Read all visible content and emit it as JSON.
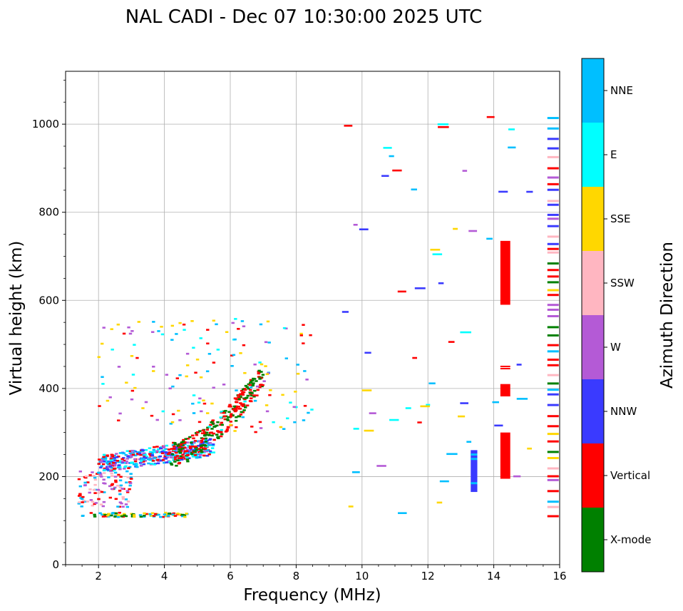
{
  "chart_data": {
    "type": "scatter",
    "title": "NAL CADI - Dec 07 10:30:00 2025 UTC",
    "xlabel": "Frequency (MHz)",
    "ylabel": "Virtual height (km)",
    "xlim": [
      1,
      16
    ],
    "ylim": [
      0,
      1120
    ],
    "xticks": [
      2,
      4,
      6,
      8,
      10,
      12,
      14,
      16
    ],
    "yticks": [
      0,
      200,
      400,
      600,
      800,
      1000
    ],
    "grid": true,
    "colorbar": {
      "label": "Azimuth Direction",
      "categories": [
        {
          "name": "X-mode",
          "color": "#008000"
        },
        {
          "name": "Vertical",
          "color": "#ff0000"
        },
        {
          "name": "NNW",
          "color": "#3a3aff"
        },
        {
          "name": "W",
          "color": "#b45ad6"
        },
        {
          "name": "SSW",
          "color": "#ffb6c1"
        },
        {
          "name": "SSE",
          "color": "#ffd700"
        },
        {
          "name": "E",
          "color": "#00ffff"
        },
        {
          "name": "NNE",
          "color": "#00bfff"
        }
      ]
    },
    "groups": [
      {
        "label": "E-layer echoes (~110 km)",
        "azimuths": [
          "Vertical",
          "SSE",
          "NNE",
          "X-mode"
        ],
        "freq_range": [
          1.5,
          4.7
        ],
        "height_range": [
          108,
          118
        ]
      },
      {
        "label": "Low echoes 2.0-3.0 MHz",
        "azimuths": [
          "SSW",
          "Vertical",
          "W",
          "NNE"
        ],
        "freq_range": [
          1.4,
          3.0
        ],
        "height_range": [
          130,
          215
        ]
      },
      {
        "label": "F-layer O-trace lower",
        "azimuths": [
          "NNE",
          "Vertical",
          "NNW",
          "E",
          "W"
        ],
        "freq_range": [
          2.0,
          5.5
        ],
        "height_range": [
          220,
          290
        ]
      },
      {
        "label": "F-layer X-mode trace",
        "azimuths": [
          "X-mode",
          "Vertical"
        ],
        "freq_range": [
          4.2,
          7.0
        ],
        "height_range": [
          245,
          490
        ]
      },
      {
        "label": "F-layer upper echoes",
        "azimuths": [
          "SSE",
          "E",
          "NNE",
          "Vertical",
          "W"
        ],
        "freq_range": [
          2.0,
          8.5
        ],
        "height_range": [
          300,
          560
        ]
      },
      {
        "label": "Vertical column 14.4 MHz",
        "azimuths": [
          "Vertical"
        ],
        "freq_range": [
          14.2,
          14.5
        ],
        "height_range": [
          195,
          735
        ]
      },
      {
        "label": "NNW column 13.4 MHz",
        "azimuths": [
          "NNW",
          "NNE"
        ],
        "freq_range": [
          13.3,
          13.5
        ],
        "height_range": [
          165,
          260
        ]
      },
      {
        "label": "Mixed column 15.8 MHz",
        "azimuths": [
          "X-mode",
          "Vertical",
          "NNW",
          "W",
          "SSW",
          "NNE",
          "SSE"
        ],
        "freq_range": [
          15.6,
          16.0
        ],
        "height_range": [
          110,
          1020
        ]
      },
      {
        "label": "Scattered high echoes",
        "azimuths": [
          "NNW",
          "W",
          "SSE",
          "Vertical",
          "E",
          "NNE"
        ],
        "freq_range": [
          9.0,
          15.1
        ],
        "height_range": [
          90,
          1020
        ]
      }
    ]
  }
}
